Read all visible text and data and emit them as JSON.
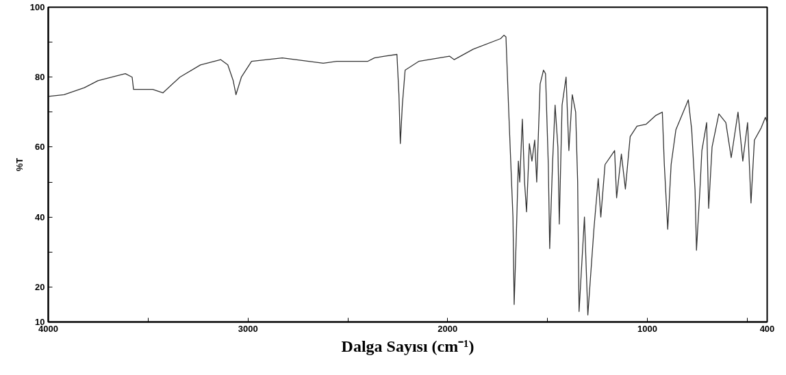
{
  "chart_data": {
    "type": "line",
    "xlabel": "Dalga Sayısı (cm⁻¹)",
    "ylabel": "%T",
    "x": [
      4000,
      3921,
      3819,
      3751,
      3648,
      3614,
      3580,
      3573,
      3477,
      3426,
      3341,
      3238,
      3136,
      3101,
      3074,
      3060,
      3033,
      2982,
      2828,
      2623,
      2555,
      2401,
      2367,
      2316,
      2254,
      2244,
      2237,
      2227,
      2213,
      2145,
      1991,
      1967,
      1872,
      1735,
      1718,
      1708,
      1694,
      1673,
      1667,
      1656,
      1646,
      1639,
      1626,
      1615,
      1605,
      1591,
      1578,
      1564,
      1554,
      1537,
      1520,
      1510,
      1496,
      1489,
      1475,
      1462,
      1448,
      1441,
      1427,
      1407,
      1393,
      1376,
      1359,
      1349,
      1342,
      1315,
      1298,
      1267,
      1246,
      1233,
      1212,
      1188,
      1164,
      1154,
      1130,
      1110,
      1086,
      1052,
      1007,
      959,
      925,
      915,
      898,
      881,
      857,
      795,
      778,
      761,
      754,
      737,
      727,
      703,
      693,
      676,
      642,
      607,
      580,
      546,
      522,
      498,
      481,
      464,
      430,
      409,
      400
    ],
    "series": [
      {
        "color": "#333333",
        "values": [
          74.5,
          75,
          77,
          79,
          80.5,
          81,
          80,
          76.5,
          76.5,
          75.5,
          80,
          83.5,
          85,
          83.5,
          79,
          75,
          80,
          84.5,
          85.5,
          84,
          84.5,
          84.5,
          85.5,
          86,
          86.5,
          75,
          61,
          72,
          82,
          84.5,
          86,
          85,
          88,
          91,
          92,
          91.5,
          70,
          40,
          15,
          35,
          56,
          50,
          68,
          50,
          41.5,
          61,
          56,
          62,
          50,
          78,
          82,
          81,
          55,
          31,
          55,
          72,
          60,
          38,
          72,
          80,
          59,
          75,
          70,
          50,
          13,
          40,
          12,
          37,
          51,
          40,
          55,
          57,
          59,
          45.5,
          58,
          48,
          63,
          66,
          66.5,
          69,
          70,
          55,
          36.5,
          55,
          65,
          73.5,
          65,
          47.5,
          30.5,
          47.5,
          59,
          67,
          42.5,
          60,
          69.5,
          67,
          57,
          70,
          56,
          67,
          44,
          62,
          65.5,
          68.5,
          67
        ]
      }
    ],
    "xlim": [
      4000,
      400
    ],
    "ylim": [
      10,
      100
    ],
    "xticks": [
      4000,
      {
        "value": 3500,
        "label": null
      },
      3000,
      {
        "value": 2500,
        "label": null
      },
      2000,
      {
        "value": 1500,
        "label": null
      },
      1000,
      {
        "value": 500,
        "label": null
      },
      400
    ],
    "yticks": [
      10,
      20,
      {
        "value": 30,
        "label": null
      },
      40,
      {
        "value": 50,
        "label": null
      },
      60,
      {
        "value": 70,
        "label": null
      },
      80,
      {
        "value": 90,
        "label": null
      },
      100
    ],
    "grid": false,
    "marker": "none",
    "line_style": "solid"
  }
}
